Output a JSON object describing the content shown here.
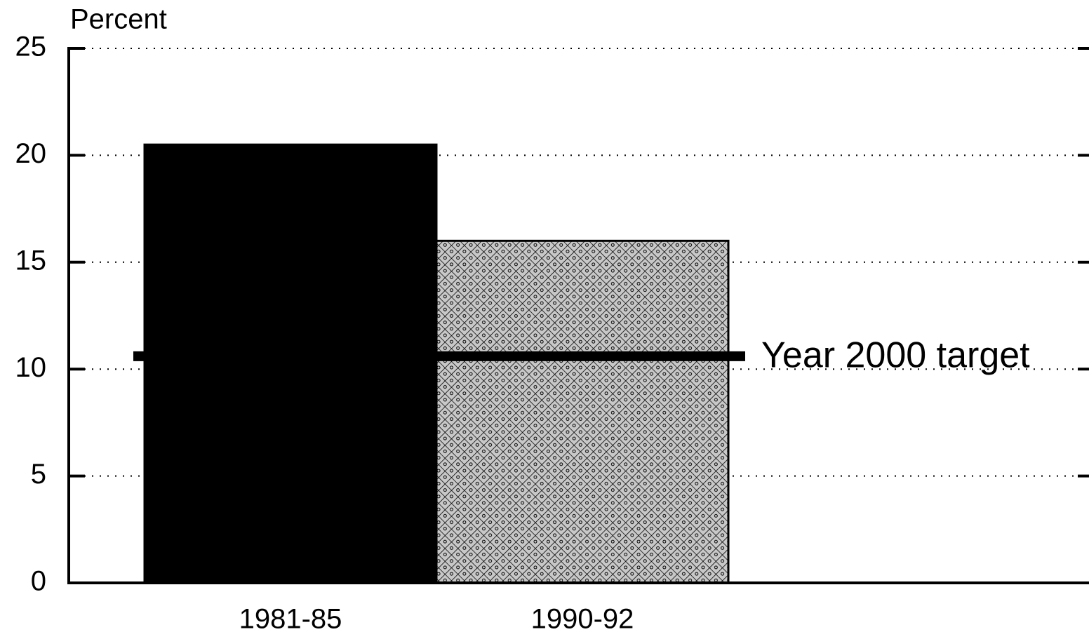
{
  "chart_data": {
    "type": "bar",
    "ylabel": "Percent",
    "categories": [
      "1981-85",
      "1990-92"
    ],
    "values": [
      20.5,
      16
    ],
    "colors": [
      "#000000",
      "#c8c8c8"
    ],
    "fills": [
      "solid",
      "checkered"
    ],
    "ylim": [
      0,
      25
    ],
    "yticks": [
      0,
      5,
      10,
      15,
      20,
      25
    ],
    "grid": true,
    "reference_line": {
      "label": "Year 2000 target",
      "value": 10.6
    }
  }
}
